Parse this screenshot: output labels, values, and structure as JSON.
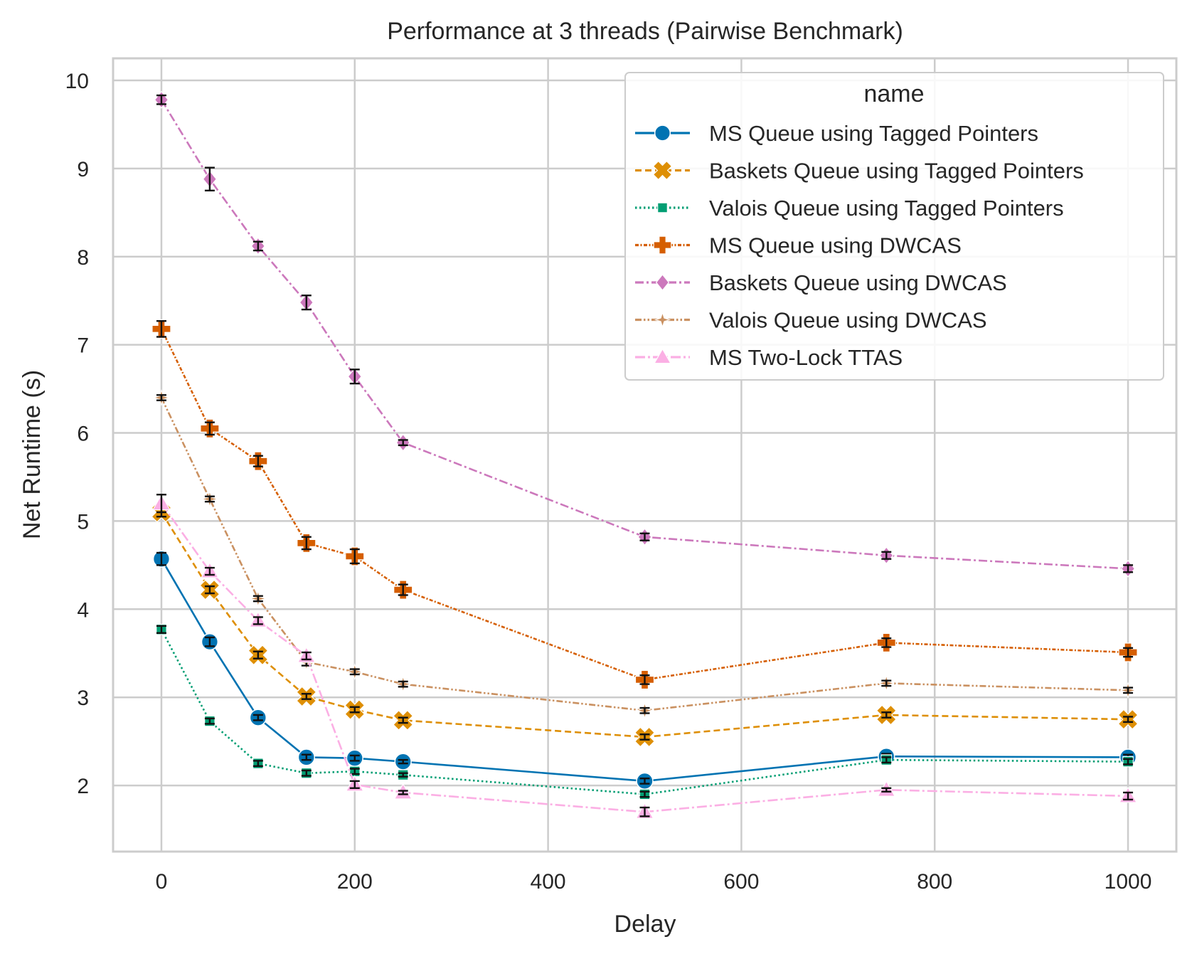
{
  "chart_data": {
    "type": "line",
    "title": "Performance at 3 threads (Pairwise Benchmark)",
    "xlabel": "Delay",
    "ylabel": "Net Runtime (s)",
    "xlim": [
      -50,
      1050
    ],
    "ylim": [
      1.25,
      10.25
    ],
    "xticks": [
      0,
      200,
      400,
      600,
      800,
      1000
    ],
    "yticks": [
      2,
      3,
      4,
      5,
      6,
      7,
      8,
      9,
      10
    ],
    "grid": true,
    "error_bars": true,
    "legend": {
      "title": "name",
      "placement": "top-right"
    },
    "x": [
      0,
      50,
      100,
      150,
      200,
      250,
      500,
      750,
      1000
    ],
    "series": [
      {
        "name": "MS Queue using Tagged Pointers",
        "color": "#0173b2",
        "marker": "circle",
        "dash": "solid",
        "values": [
          4.57,
          3.63,
          2.77,
          2.32,
          2.31,
          2.27,
          2.05,
          2.33,
          2.32
        ],
        "errors": [
          0.07,
          0.05,
          0.03,
          0.03,
          0.03,
          0.02,
          0.03,
          0.03,
          0.03
        ]
      },
      {
        "name": "Baskets Queue using Tagged Pointers",
        "color": "#de8f05",
        "marker": "x-filled",
        "dash": "dashed",
        "values": [
          5.1,
          4.22,
          3.48,
          3.01,
          2.86,
          2.74,
          2.55,
          2.8,
          2.75
        ],
        "errors": [
          0.05,
          0.04,
          0.04,
          0.03,
          0.03,
          0.03,
          0.03,
          0.03,
          0.03
        ]
      },
      {
        "name": "Valois Queue using Tagged Pointers",
        "color": "#029e73",
        "marker": "square",
        "dash": "dotted",
        "values": [
          3.77,
          2.73,
          2.25,
          2.14,
          2.16,
          2.12,
          1.9,
          2.29,
          2.27
        ],
        "errors": [
          0.04,
          0.03,
          0.03,
          0.03,
          0.03,
          0.02,
          0.03,
          0.03,
          0.03
        ]
      },
      {
        "name": "MS Queue using DWCAS",
        "color": "#d55e00",
        "marker": "plus-filled",
        "dash": "dashdot-dense",
        "values": [
          7.18,
          6.05,
          5.68,
          4.75,
          4.6,
          4.22,
          3.2,
          3.62,
          3.51
        ],
        "errors": [
          0.09,
          0.07,
          0.06,
          0.07,
          0.08,
          0.06,
          0.05,
          0.05,
          0.05
        ]
      },
      {
        "name": "Baskets Queue using DWCAS",
        "color": "#cc78bc",
        "marker": "diamond",
        "dash": "dashdot",
        "values": [
          9.78,
          8.88,
          8.12,
          7.48,
          6.64,
          5.89,
          4.82,
          4.61,
          4.46
        ],
        "errors": [
          0.05,
          0.13,
          0.05,
          0.08,
          0.08,
          0.03,
          0.04,
          0.04,
          0.04
        ]
      },
      {
        "name": "Valois Queue using DWCAS",
        "color": "#ca9161",
        "marker": "star",
        "dash": "dashdotdot",
        "values": [
          6.4,
          5.25,
          4.12,
          3.4,
          3.29,
          3.15,
          2.85,
          3.16,
          3.08
        ],
        "errors": [
          0.03,
          0.03,
          0.03,
          0.04,
          0.03,
          0.03,
          0.03,
          0.03,
          0.03
        ]
      },
      {
        "name": "MS Two-Lock TTAS",
        "color": "#fbafe4",
        "marker": "triangle",
        "dash": "dashdot-long",
        "values": [
          5.2,
          4.43,
          3.87,
          3.47,
          2.01,
          1.92,
          1.7,
          1.95,
          1.88
        ],
        "errors": [
          0.1,
          0.04,
          0.04,
          0.04,
          0.04,
          0.02,
          0.05,
          0.02,
          0.04
        ]
      }
    ]
  }
}
